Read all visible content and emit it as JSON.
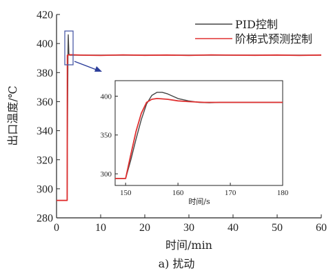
{
  "chart_data": [
    {
      "type": "line",
      "role": "main",
      "xlabel": "时间/min",
      "ylabel": "出口温度/℃",
      "xlim": [
        0,
        60
      ],
      "ylim": [
        280,
        420
      ],
      "xticks": [
        0,
        10,
        20,
        30,
        40,
        50,
        60
      ],
      "yticks": [
        280,
        300,
        320,
        340,
        360,
        380,
        400,
        420
      ],
      "legend_position": "top-right",
      "caption": "a) 扰动",
      "series": [
        {
          "name": "PID控制",
          "color": "#444444",
          "points": [
            [
              0,
              292
            ],
            [
              2.4,
              292
            ],
            [
              2.5,
              350
            ],
            [
              2.6,
              395
            ],
            [
              2.65,
              406
            ],
            [
              2.7,
              402
            ],
            [
              2.8,
              393
            ],
            [
              3.0,
              392
            ],
            [
              10,
              392
            ],
            [
              20,
              392
            ],
            [
              30,
              392
            ],
            [
              40,
              392
            ],
            [
              50,
              392
            ],
            [
              60,
              392
            ]
          ]
        },
        {
          "name": "阶梯式预测控制",
          "color": "#e03030",
          "points": [
            [
              0,
              292
            ],
            [
              2.4,
              292
            ],
            [
              2.45,
              392
            ],
            [
              3.2,
              392.3
            ],
            [
              6,
              392
            ],
            [
              10,
              391.8
            ],
            [
              15,
              392.2
            ],
            [
              20,
              391.9
            ],
            [
              25,
              392.1
            ],
            [
              30,
              391.8
            ],
            [
              35,
              392.2
            ],
            [
              40,
              392
            ],
            [
              45,
              391.9
            ],
            [
              50,
              392.1
            ],
            [
              55,
              391.8
            ],
            [
              60,
              392.1
            ]
          ]
        }
      ]
    },
    {
      "type": "line",
      "role": "inset",
      "xlabel": "时间/s",
      "ylabel": "",
      "xlim": [
        148,
        180
      ],
      "ylim": [
        285,
        420
      ],
      "xticks": [
        150,
        160,
        170,
        180
      ],
      "yticks": [
        300,
        350,
        400
      ],
      "series": [
        {
          "name": "PID控制",
          "color": "#444444",
          "points": [
            [
              148,
              294
            ],
            [
              150,
              294
            ],
            [
              151,
              318
            ],
            [
              152,
              345
            ],
            [
              153,
              370
            ],
            [
              154,
              390
            ],
            [
              155,
              401
            ],
            [
              156,
              405
            ],
            [
              157,
              405
            ],
            [
              158,
              403
            ],
            [
              159,
              400
            ],
            [
              160,
              397
            ],
            [
              162,
              394
            ],
            [
              164,
              392
            ],
            [
              166,
              391.5
            ],
            [
              168,
              392
            ],
            [
              170,
              392
            ],
            [
              175,
              392
            ],
            [
              180,
              392
            ]
          ]
        },
        {
          "name": "阶梯式预测控制",
          "color": "#e03030",
          "points": [
            [
              148,
              294
            ],
            [
              150,
              294
            ],
            [
              151,
              325
            ],
            [
              152,
              355
            ],
            [
              153,
              378
            ],
            [
              154,
              392
            ],
            [
              155,
              396
            ],
            [
              156,
              397
            ],
            [
              158,
              396
            ],
            [
              160,
              394
            ],
            [
              162,
              393
            ],
            [
              165,
              392
            ],
            [
              170,
              392
            ],
            [
              175,
              392
            ],
            [
              180,
              392
            ]
          ]
        }
      ]
    }
  ]
}
